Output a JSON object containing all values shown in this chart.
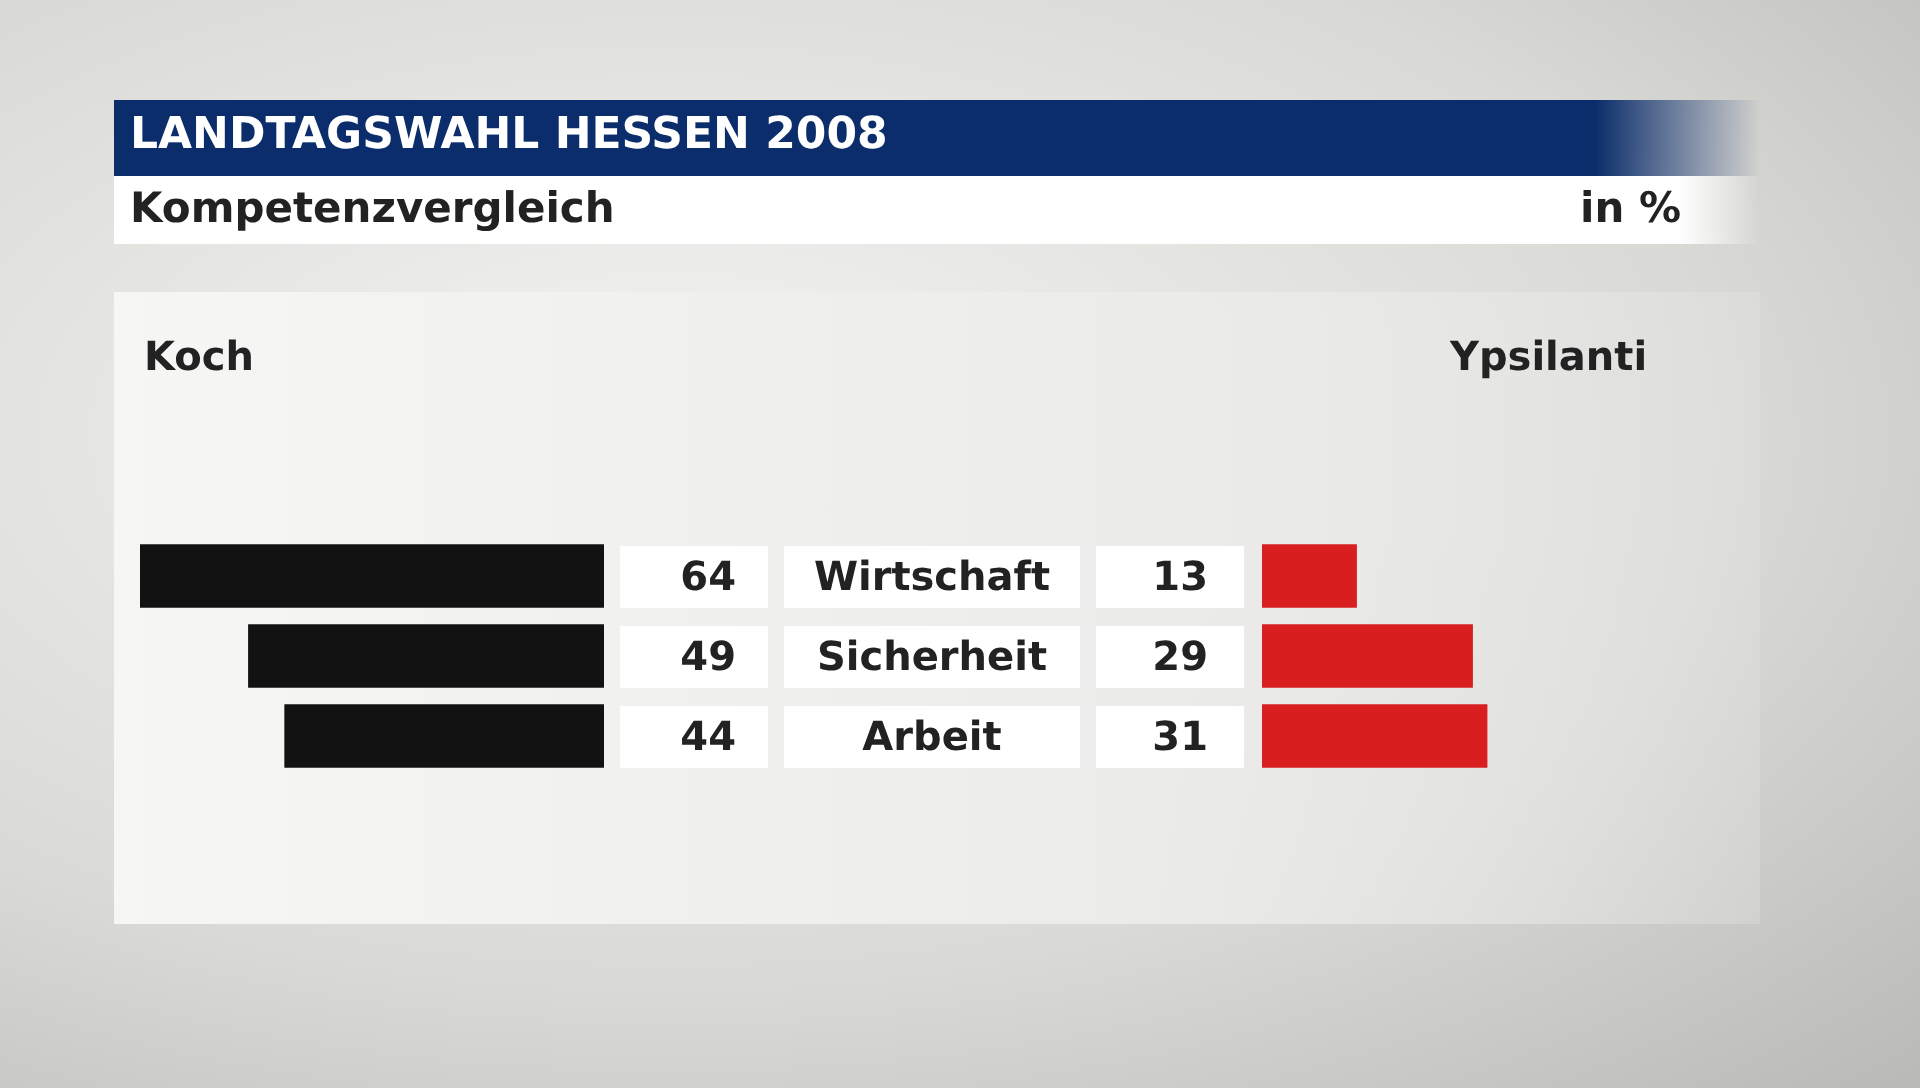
{
  "chart_data": [
    {
      "type": "bar",
      "orientation": "horizontal",
      "title": "LANDTAGSWAHL HESSEN 2008",
      "subtitle": "Kompetenzvergleich",
      "annotations": [
        "in %"
      ],
      "categories": [
        "Wirtschaft",
        "Sicherheit",
        "Arbeit"
      ],
      "series": [
        {
          "name": "Koch",
          "color": "#121212",
          "values": [
            64,
            49,
            44
          ]
        }
      ],
      "data_labels": true,
      "legend": false,
      "grid": false
    },
    {
      "type": "bar",
      "orientation": "horizontal",
      "categories": [
        null,
        null,
        null
      ],
      "series": [
        {
          "name": "Ypsilanti",
          "color": "#d81e1e",
          "values": [
            13,
            29,
            31
          ]
        }
      ],
      "data_labels": true,
      "legend": false,
      "grid": false
    }
  ]
}
